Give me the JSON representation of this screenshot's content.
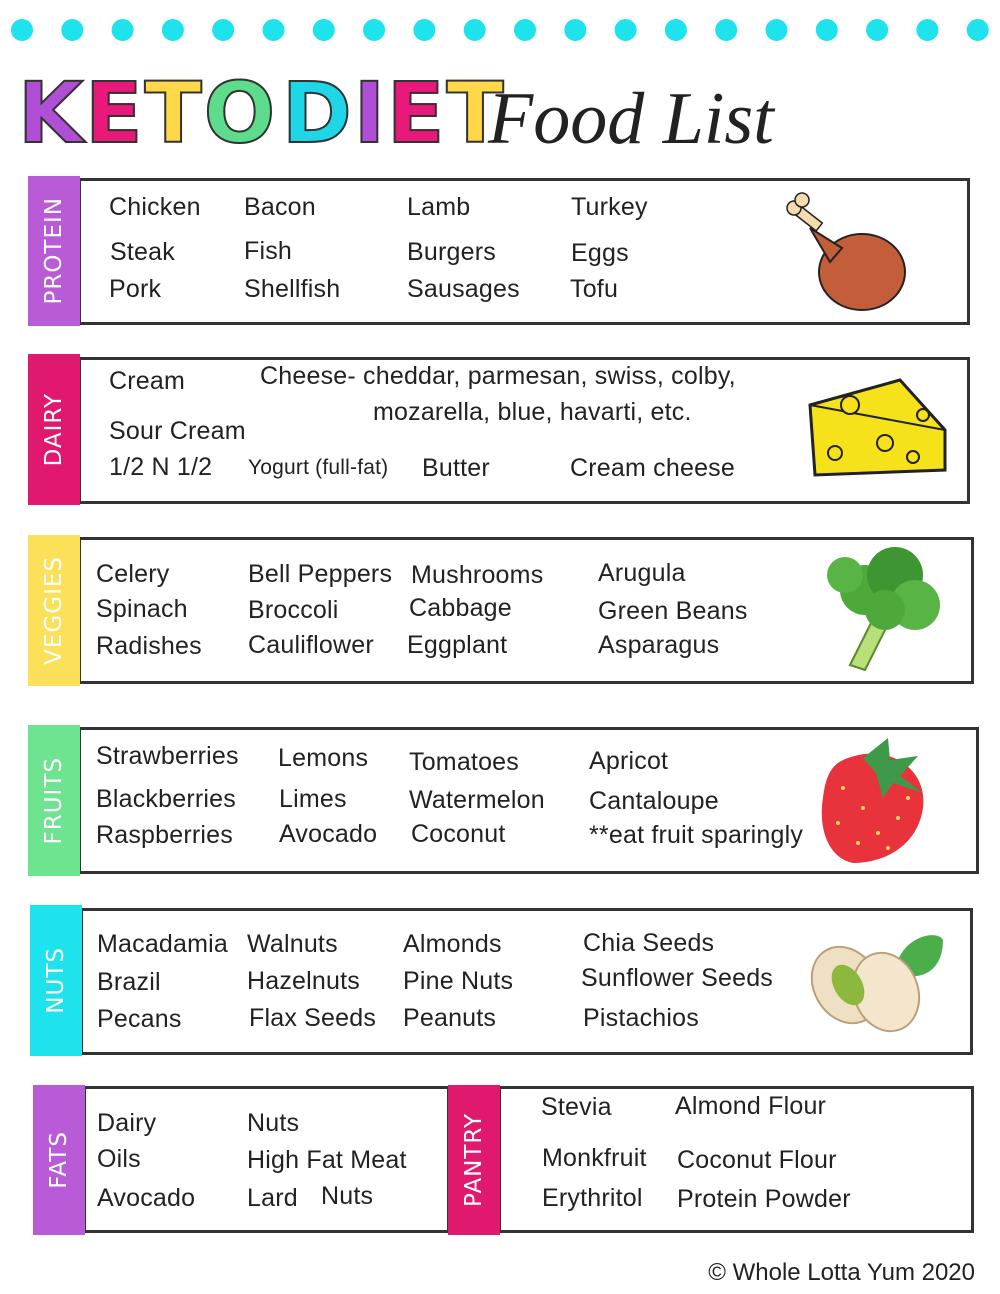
{
  "title": {
    "keto": "KETO",
    "diet": "DIET",
    "script": "Food List"
  },
  "sections": [
    {
      "label": "PROTEIN",
      "items": [
        "Chicken",
        "Bacon",
        "Lamb",
        "Turkey",
        "Steak",
        "Fish",
        "Burgers",
        "Eggs",
        "Pork",
        "Shellfish",
        "Sausages",
        "Tofu"
      ]
    },
    {
      "label": "DAIRY",
      "items": [
        "Cream",
        "Cheese- cheddar, parmesan, swiss, colby,",
        "mozarella, blue, havarti, etc.",
        "Sour Cream",
        "1/2 N 1/2",
        "Yogurt (full-fat)",
        "Butter",
        "Cream cheese"
      ]
    },
    {
      "label": "VEGGIES",
      "items": [
        "Celery",
        "Spinach",
        "Radishes",
        "Bell Peppers",
        "Broccoli",
        "Cauliflower",
        "Mushrooms",
        "Cabbage",
        "Eggplant",
        "Arugula",
        "Green Beans",
        "Asparagus"
      ]
    },
    {
      "label": "FRUITS",
      "items": [
        "Strawberries",
        "Blackberries",
        "Raspberries",
        "Lemons",
        "Limes",
        "Avocado",
        "Tomatoes",
        "Watermelon",
        "Coconut",
        "Apricot",
        "Cantaloupe",
        "**eat fruit sparingly"
      ]
    },
    {
      "label": "NUTS",
      "items": [
        "Macadamia",
        "Brazil",
        "Pecans",
        "Walnuts",
        "Hazelnuts",
        "Flax Seeds",
        "Almonds",
        "Pine Nuts",
        "Peanuts",
        "Chia Seeds",
        "Sunflower Seeds",
        "Pistachios"
      ]
    },
    {
      "label": "FATS",
      "items": [
        "Dairy",
        "Oils",
        "Avocado",
        "Nuts",
        "High Fat Meat",
        "Lard",
        "Nuts"
      ]
    },
    {
      "label": "PANTRY",
      "items": [
        "Stevia",
        "Monkfruit",
        "Erythritol",
        "Almond Flour",
        "Coconut Flour",
        "Protein Powder"
      ]
    }
  ],
  "footer": "© Whole Lotta Yum 2020"
}
